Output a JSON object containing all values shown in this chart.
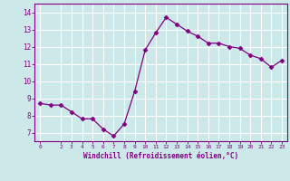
{
  "x": [
    0,
    1,
    2,
    3,
    4,
    5,
    6,
    7,
    8,
    9,
    10,
    11,
    12,
    13,
    14,
    15,
    16,
    17,
    18,
    19,
    20,
    21,
    22,
    23
  ],
  "y": [
    8.7,
    8.6,
    8.6,
    8.2,
    7.8,
    7.8,
    7.2,
    6.8,
    7.5,
    9.4,
    11.8,
    12.8,
    13.7,
    13.3,
    12.9,
    12.6,
    12.2,
    12.2,
    12.0,
    11.9,
    11.5,
    11.3,
    10.8,
    11.2
  ],
  "line_color": "#800080",
  "marker": "D",
  "marker_size": 2.5,
  "bg_color": "#cce8e8",
  "grid_color": "#ffffff",
  "xlabel": "Windchill (Refroidissement éolien,°C)",
  "xlabel_color": "#800080",
  "tick_color": "#800080",
  "ylabel_ticks": [
    7,
    8,
    9,
    10,
    11,
    12,
    13,
    14
  ],
  "xlim": [
    -0.5,
    23.5
  ],
  "ylim": [
    6.5,
    14.5
  ],
  "xticks": [
    0,
    2,
    3,
    4,
    5,
    6,
    7,
    8,
    9,
    10,
    11,
    12,
    13,
    14,
    15,
    16,
    17,
    18,
    19,
    20,
    21,
    22,
    23
  ]
}
